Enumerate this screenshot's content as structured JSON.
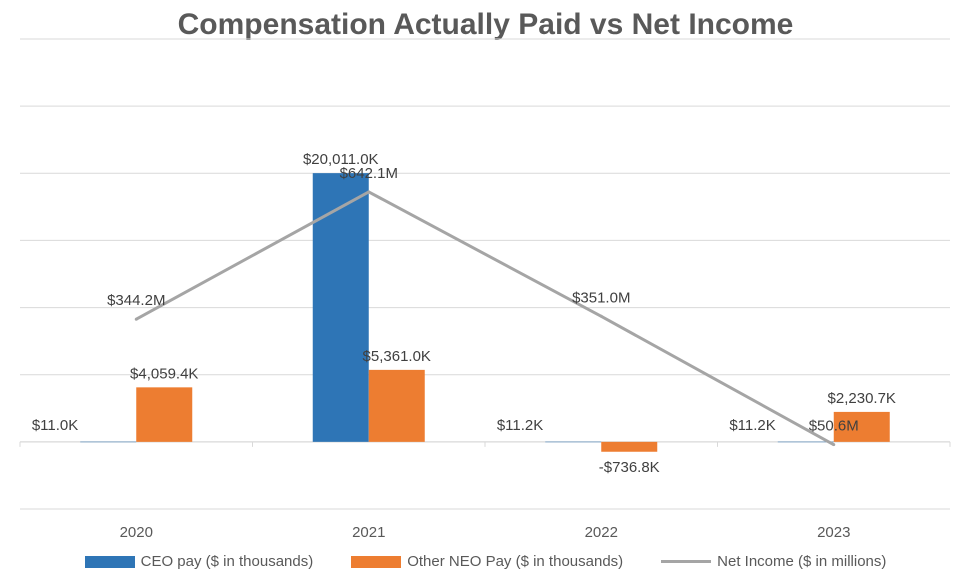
{
  "chart_data": {
    "type": "bar",
    "title": "Compensation Actually Paid vs Net Income",
    "categories": [
      "2020",
      "2021",
      "2022",
      "2023"
    ],
    "series": [
      {
        "name": "CEO pay ($ in thousands)",
        "kind": "bar",
        "color": "#2E75B6",
        "values": [
          11.0,
          20011.0,
          11.2,
          11.2
        ],
        "labels": [
          "$11.0K",
          "$20,011.0K",
          "$11.2K",
          "$11.2K"
        ]
      },
      {
        "name": "Other NEO Pay ($ in thousands)",
        "kind": "bar",
        "color": "#ED7D31",
        "values": [
          4059.4,
          5361.0,
          -736.8,
          2230.7
        ],
        "labels": [
          "$4,059.4K",
          "$5,361.0K",
          "-$736.8K",
          "$2,230.7K"
        ]
      },
      {
        "name": "Net Income ($ in millions)",
        "kind": "line",
        "color": "#A5A5A5",
        "values": [
          344.2,
          642.1,
          351.0,
          50.6
        ],
        "labels": [
          "$344.2M",
          "$642.1M",
          "$351.0M",
          "$50.6M"
        ]
      }
    ],
    "primary_axis": {
      "ylim": [
        -5000,
        30000
      ],
      "grid": true
    },
    "secondary_axis": {
      "ylim": [
        -100,
        1000
      ]
    },
    "legend": "bottom"
  }
}
